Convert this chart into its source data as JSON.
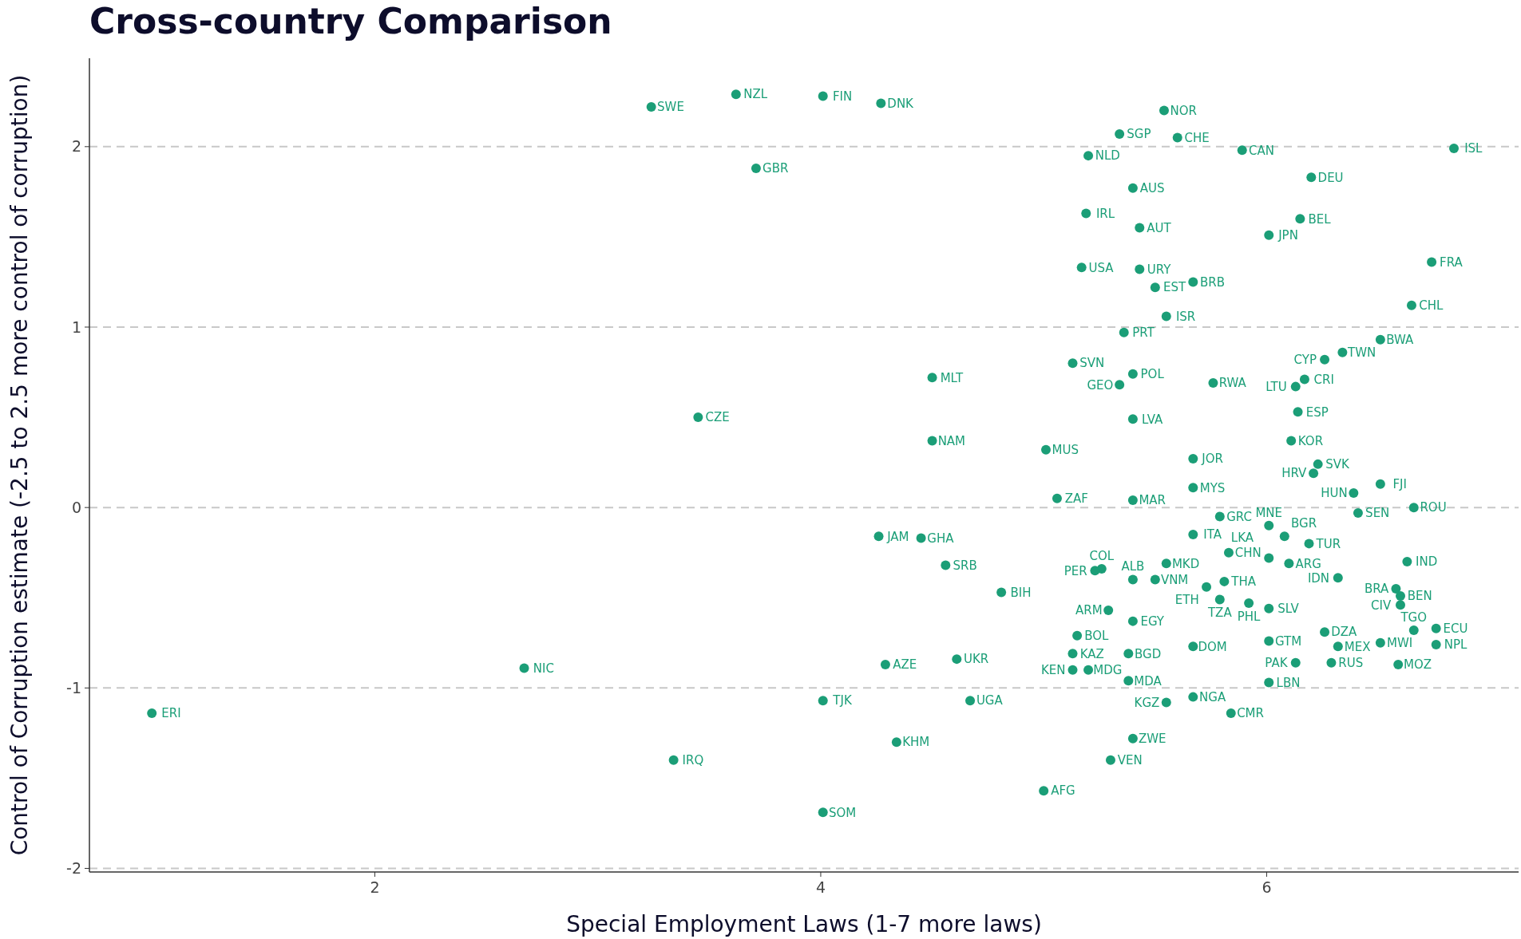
{
  "chart_data": {
    "type": "scatter",
    "title": "Cross-country Comparison",
    "xlabel": "Special Employment Laws (1-7 more laws)",
    "ylabel": "Control of Corruption estimate (-2.5 to 2.5 more control of corruption)",
    "xlim": [
      0.72,
      7.13
    ],
    "xticks": [
      2,
      4,
      6
    ],
    "ylim": [
      -2.02,
      2.49
    ],
    "yticks": [
      -2,
      -1,
      0,
      1,
      2
    ],
    "grid": "y",
    "marker": "circle",
    "series": [
      {
        "color": "#1b9e77",
        "x": [
          3.24,
          3.62,
          4.01,
          4.27,
          3.71,
          5.54,
          5.34,
          5.6,
          5.89,
          6.84,
          5.2,
          5.4,
          6.2,
          5.19,
          6.15,
          5.43,
          6.01,
          5.43,
          5.17,
          6.74,
          5.67,
          5.5,
          6.65,
          5.55,
          5.36,
          6.51,
          6.34,
          5.13,
          5.4,
          6.26,
          5.76,
          6.17,
          6.13,
          5.34,
          4.5,
          3.45,
          6.14,
          5.4,
          4.5,
          6.11,
          5.01,
          5.67,
          6.23,
          6.21,
          6.51,
          5.67,
          6.39,
          5.06,
          5.4,
          6.66,
          6.19,
          5.79,
          5.67,
          6.01,
          6.08,
          6.41,
          5.83,
          5.55,
          5.81,
          6.01,
          6.1,
          6.63,
          5.26,
          5.23,
          5.5,
          5.4,
          5.73,
          5.79,
          5.92,
          4.81,
          4.56,
          4.26,
          4.45,
          6.58,
          6.6,
          6.6,
          6.01,
          6.32,
          5.29,
          5.4,
          6.26,
          6.76,
          6.32,
          6.01,
          5.67,
          6.76,
          6.51,
          6.66,
          6.59,
          5.15,
          5.13,
          4.29,
          4.61,
          2.67,
          1.0,
          5.2,
          5.13,
          5.38,
          6.01,
          6.13,
          6.29,
          5.38,
          4.01,
          4.67,
          5.67,
          5.55,
          5.84,
          4.34,
          5.4,
          3.34,
          5.3,
          5.0,
          4.01
        ],
        "values": [
          2.22,
          2.29,
          2.28,
          2.24,
          1.88,
          2.2,
          2.07,
          2.05,
          1.98,
          1.99,
          1.95,
          1.77,
          1.83,
          1.63,
          1.6,
          1.55,
          1.51,
          1.32,
          1.33,
          1.36,
          1.25,
          1.22,
          1.12,
          1.06,
          0.97,
          0.93,
          0.86,
          0.8,
          0.74,
          0.82,
          0.69,
          0.71,
          0.67,
          0.68,
          0.72,
          0.5,
          0.53,
          0.49,
          0.37,
          0.37,
          0.32,
          0.27,
          0.24,
          0.19,
          0.13,
          0.11,
          0.08,
          0.05,
          0.04,
          0.0,
          -0.2,
          -0.05,
          -0.15,
          -0.1,
          -0.16,
          -0.03,
          -0.25,
          -0.31,
          -0.41,
          -0.28,
          -0.31,
          -0.3,
          -0.34,
          -0.35,
          -0.4,
          -0.4,
          -0.44,
          -0.51,
          -0.53,
          -0.47,
          -0.32,
          -0.16,
          -0.17,
          -0.45,
          -0.49,
          -0.54,
          -0.56,
          -0.39,
          -0.57,
          -0.63,
          -0.69,
          -0.67,
          -0.77,
          -0.74,
          -0.77,
          -0.76,
          -0.75,
          -0.68,
          -0.87,
          -0.71,
          -0.81,
          -0.87,
          -0.84,
          -0.89,
          -1.14,
          -0.9,
          -0.9,
          -0.81,
          -0.97,
          -0.86,
          -0.86,
          -0.96,
          -1.07,
          -1.07,
          -1.05,
          -1.08,
          -1.14,
          -1.3,
          -1.28,
          -1.4,
          -1.4,
          -1.57,
          -1.69
        ]
      }
    ],
    "annotations": [
      {
        "text": "SWE",
        "x": 3.24,
        "y": 2.22
      },
      {
        "text": "NZL",
        "x": 3.62,
        "y": 2.29
      },
      {
        "text": "FIN",
        "x": 4.01,
        "y": 2.28
      },
      {
        "text": "DNK",
        "x": 4.27,
        "y": 2.24
      },
      {
        "text": "GBR",
        "x": 3.71,
        "y": 1.88
      },
      {
        "text": "NOR",
        "x": 5.54,
        "y": 2.2
      },
      {
        "text": "SGP",
        "x": 5.34,
        "y": 2.07
      },
      {
        "text": "CHE",
        "x": 5.6,
        "y": 2.05
      },
      {
        "text": "CAN",
        "x": 5.89,
        "y": 1.98
      },
      {
        "text": "ISL",
        "x": 6.84,
        "y": 1.99
      },
      {
        "text": "NLD",
        "x": 5.2,
        "y": 1.95
      },
      {
        "text": "AUS",
        "x": 5.4,
        "y": 1.77
      },
      {
        "text": "DEU",
        "x": 6.2,
        "y": 1.83
      },
      {
        "text": "IRL",
        "x": 5.19,
        "y": 1.63
      },
      {
        "text": "BEL",
        "x": 6.15,
        "y": 1.6
      },
      {
        "text": "AUT",
        "x": 5.43,
        "y": 1.55
      },
      {
        "text": "JPN",
        "x": 6.01,
        "y": 1.51
      },
      {
        "text": "URY",
        "x": 5.43,
        "y": 1.32
      },
      {
        "text": "USA",
        "x": 5.17,
        "y": 1.33
      },
      {
        "text": "FRA",
        "x": 6.74,
        "y": 1.36
      },
      {
        "text": "BRB",
        "x": 5.67,
        "y": 1.25
      },
      {
        "text": "EST",
        "x": 5.5,
        "y": 1.22
      },
      {
        "text": "CHL",
        "x": 6.65,
        "y": 1.12
      },
      {
        "text": "ISR",
        "x": 5.55,
        "y": 1.06
      },
      {
        "text": "PRT",
        "x": 5.36,
        "y": 0.97
      },
      {
        "text": "BWA",
        "x": 6.51,
        "y": 0.93
      },
      {
        "text": "TWN",
        "x": 6.34,
        "y": 0.86
      },
      {
        "text": "SVN",
        "x": 5.13,
        "y": 0.8
      },
      {
        "text": "POL",
        "x": 5.4,
        "y": 0.74
      },
      {
        "text": "CYP",
        "x": 6.26,
        "y": 0.82
      },
      {
        "text": "RWA",
        "x": 5.76,
        "y": 0.69
      },
      {
        "text": "CRI",
        "x": 6.17,
        "y": 0.71
      },
      {
        "text": "LTU",
        "x": 6.13,
        "y": 0.67
      },
      {
        "text": "GEO",
        "x": 5.34,
        "y": 0.68
      },
      {
        "text": "MLT",
        "x": 4.5,
        "y": 0.72
      },
      {
        "text": "CZE",
        "x": 3.45,
        "y": 0.5
      },
      {
        "text": "ESP",
        "x": 6.14,
        "y": 0.53
      },
      {
        "text": "LVA",
        "x": 5.4,
        "y": 0.49
      },
      {
        "text": "NAM",
        "x": 4.5,
        "y": 0.37
      },
      {
        "text": "KOR",
        "x": 6.11,
        "y": 0.37
      },
      {
        "text": "MUS",
        "x": 5.01,
        "y": 0.32
      },
      {
        "text": "JOR",
        "x": 5.67,
        "y": 0.27
      },
      {
        "text": "SVK",
        "x": 6.23,
        "y": 0.24
      },
      {
        "text": "HRV",
        "x": 6.21,
        "y": 0.19
      },
      {
        "text": "FJI",
        "x": 6.51,
        "y": 0.13
      },
      {
        "text": "MYS",
        "x": 5.67,
        "y": 0.11
      },
      {
        "text": "HUN",
        "x": 6.39,
        "y": 0.08
      },
      {
        "text": "ZAF",
        "x": 5.06,
        "y": 0.05
      },
      {
        "text": "MAR",
        "x": 5.4,
        "y": 0.04
      },
      {
        "text": "ROU",
        "x": 6.66,
        "y": 0.0
      },
      {
        "text": "TUR",
        "x": 6.19,
        "y": -0.2
      },
      {
        "text": "GRC",
        "x": 5.79,
        "y": -0.05
      },
      {
        "text": "ITA",
        "x": 5.67,
        "y": -0.15
      },
      {
        "text": "MNE",
        "x": 6.01,
        "y": -0.1
      },
      {
        "text": "BGR",
        "x": 6.08,
        "y": -0.16
      },
      {
        "text": "SEN",
        "x": 6.41,
        "y": -0.03
      },
      {
        "text": "CHN",
        "x": 5.83,
        "y": -0.25
      },
      {
        "text": "MKD",
        "x": 5.55,
        "y": -0.31
      },
      {
        "text": "THA",
        "x": 5.81,
        "y": -0.41
      },
      {
        "text": "LKA",
        "x": 6.01,
        "y": -0.28
      },
      {
        "text": "ARG",
        "x": 6.1,
        "y": -0.31
      },
      {
        "text": "IND",
        "x": 6.63,
        "y": -0.3
      },
      {
        "text": "COL",
        "x": 5.26,
        "y": -0.34
      },
      {
        "text": "PER",
        "x": 5.23,
        "y": -0.35
      },
      {
        "text": "VNM",
        "x": 5.5,
        "y": -0.4
      },
      {
        "text": "ALB",
        "x": 5.4,
        "y": -0.4
      },
      {
        "text": "ETH",
        "x": 5.73,
        "y": -0.44
      },
      {
        "text": "TZA",
        "x": 5.79,
        "y": -0.51
      },
      {
        "text": "PHL",
        "x": 5.92,
        "y": -0.53
      },
      {
        "text": "BIH",
        "x": 4.81,
        "y": -0.47
      },
      {
        "text": "SRB",
        "x": 4.56,
        "y": -0.32
      },
      {
        "text": "JAM",
        "x": 4.26,
        "y": -0.16
      },
      {
        "text": "GHA",
        "x": 4.45,
        "y": -0.17
      },
      {
        "text": "BRA",
        "x": 6.58,
        "y": -0.45
      },
      {
        "text": "BEN",
        "x": 6.6,
        "y": -0.49
      },
      {
        "text": "CIV",
        "x": 6.6,
        "y": -0.54
      },
      {
        "text": "SLV",
        "x": 6.01,
        "y": -0.56
      },
      {
        "text": "IDN",
        "x": 6.32,
        "y": -0.39
      },
      {
        "text": "ARM",
        "x": 5.29,
        "y": -0.57
      },
      {
        "text": "EGY",
        "x": 5.4,
        "y": -0.63
      },
      {
        "text": "DZA",
        "x": 6.26,
        "y": -0.69
      },
      {
        "text": "ECU",
        "x": 6.76,
        "y": -0.67
      },
      {
        "text": "MEX",
        "x": 6.32,
        "y": -0.77
      },
      {
        "text": "GTM",
        "x": 6.01,
        "y": -0.74
      },
      {
        "text": "DOM",
        "x": 5.67,
        "y": -0.77
      },
      {
        "text": "NPL",
        "x": 6.76,
        "y": -0.76
      },
      {
        "text": "MWI",
        "x": 6.51,
        "y": -0.75
      },
      {
        "text": "TGO",
        "x": 6.66,
        "y": -0.68
      },
      {
        "text": "MOZ",
        "x": 6.59,
        "y": -0.87
      },
      {
        "text": "BOL",
        "x": 5.15,
        "y": -0.71
      },
      {
        "text": "KAZ",
        "x": 5.13,
        "y": -0.81
      },
      {
        "text": "AZE",
        "x": 4.29,
        "y": -0.87
      },
      {
        "text": "UKR",
        "x": 4.61,
        "y": -0.84
      },
      {
        "text": "NIC",
        "x": 2.67,
        "y": -0.89
      },
      {
        "text": "ERI",
        "x": 1.0,
        "y": -1.14
      },
      {
        "text": "MDG",
        "x": 5.2,
        "y": -0.9
      },
      {
        "text": "KEN",
        "x": 5.13,
        "y": -0.9
      },
      {
        "text": "BGD",
        "x": 5.38,
        "y": -0.81
      },
      {
        "text": "LBN",
        "x": 6.01,
        "y": -0.97
      },
      {
        "text": "PAK",
        "x": 6.13,
        "y": -0.86
      },
      {
        "text": "RUS",
        "x": 6.29,
        "y": -0.86
      },
      {
        "text": "MDA",
        "x": 5.38,
        "y": -0.96
      },
      {
        "text": "TJK",
        "x": 4.01,
        "y": -1.07
      },
      {
        "text": "UGA",
        "x": 4.67,
        "y": -1.07
      },
      {
        "text": "NGA",
        "x": 5.67,
        "y": -1.05
      },
      {
        "text": "KGZ",
        "x": 5.55,
        "y": -1.08
      },
      {
        "text": "CMR",
        "x": 5.84,
        "y": -1.14
      },
      {
        "text": "KHM",
        "x": 4.34,
        "y": -1.3
      },
      {
        "text": "ZWE",
        "x": 5.4,
        "y": -1.28
      },
      {
        "text": "IRQ",
        "x": 3.34,
        "y": -1.4
      },
      {
        "text": "VEN",
        "x": 5.3,
        "y": -1.4
      },
      {
        "text": "AFG",
        "x": 5.0,
        "y": -1.57
      },
      {
        "text": "SOM",
        "x": 4.01,
        "y": -1.69
      }
    ]
  }
}
